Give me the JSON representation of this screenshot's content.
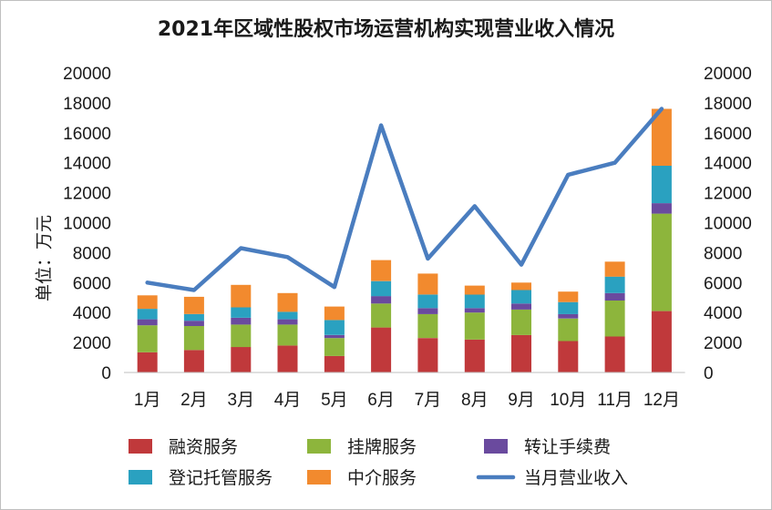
{
  "chart_data": {
    "type": "bar",
    "stacked": true,
    "title": "2021年区域性股权市场运营机构实现营业收入情况",
    "ylabel": "单位：万元",
    "xlabel": "",
    "ylim": [
      0,
      20000
    ],
    "yticks": [
      0,
      2000,
      4000,
      6000,
      8000,
      10000,
      12000,
      14000,
      16000,
      18000,
      20000
    ],
    "ytick_labels": [
      "0",
      "2000",
      "4000",
      "6000",
      "8000",
      "10000",
      "12000",
      "14000",
      "16000",
      "18000",
      "20000"
    ],
    "categories": [
      "1月",
      "2月",
      "3月",
      "4月",
      "5月",
      "6月",
      "7月",
      "8月",
      "9月",
      "10月",
      "11月",
      "12月"
    ],
    "series": [
      {
        "name": "融资服务",
        "color": "#c0393b",
        "values": [
          1350,
          1500,
          1700,
          1800,
          1100,
          3000,
          2300,
          2200,
          2500,
          2100,
          2400,
          4100
        ]
      },
      {
        "name": "挂牌服务",
        "color": "#8db53c",
        "values": [
          1800,
          1600,
          1500,
          1400,
          1200,
          1600,
          1600,
          1800,
          1700,
          1500,
          2400,
          6500
        ]
      },
      {
        "name": "转让手续费",
        "color": "#6a4a9e",
        "values": [
          400,
          350,
          450,
          350,
          200,
          500,
          400,
          300,
          400,
          300,
          500,
          700
        ]
      },
      {
        "name": "登记托管服务",
        "color": "#2aa1c0",
        "values": [
          700,
          450,
          700,
          500,
          1000,
          1000,
          900,
          900,
          900,
          800,
          1100,
          2500
        ]
      },
      {
        "name": "中介服务",
        "color": "#f28a2e",
        "values": [
          900,
          1150,
          1500,
          1250,
          900,
          1400,
          1400,
          600,
          500,
          700,
          1000,
          3800
        ]
      }
    ],
    "line": {
      "name": "当月营业收入",
      "color": "#4a7dbf",
      "values": [
        6000,
        5500,
        8300,
        7700,
        5700,
        16500,
        7600,
        11100,
        7200,
        13200,
        14000,
        17600
      ]
    },
    "legend_position": "bottom"
  }
}
